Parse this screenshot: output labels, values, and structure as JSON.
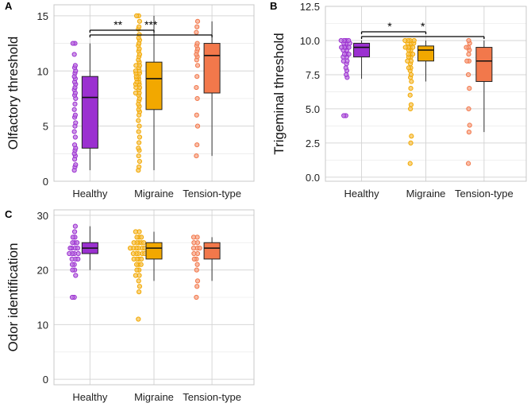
{
  "chart_data": [
    {
      "panel": "A",
      "type": "box-with-jitter",
      "ylabel": "Olfactory threshold",
      "ylim": [
        0,
        16
      ],
      "yticks": [
        0,
        5,
        10,
        15
      ],
      "categories": [
        "Healthy",
        "Migraine",
        "Tension-type"
      ],
      "colors": [
        "#9b30d0",
        "#f2a800",
        "#f2784b"
      ],
      "boxes": [
        {
          "q1": 3.0,
          "median": 7.6,
          "q3": 9.5,
          "whisker_low": 1.0,
          "whisker_high": 12.5
        },
        {
          "q1": 6.5,
          "median": 9.3,
          "q3": 10.8,
          "whisker_low": 1.0,
          "whisker_high": 15.0
        },
        {
          "q1": 8.0,
          "median": 11.4,
          "q3": 12.5,
          "whisker_low": 2.3,
          "whisker_high": 14.5
        }
      ],
      "points": [
        [
          1.0,
          1.3,
          1.5,
          2.0,
          2.3,
          2.5,
          2.8,
          3.0,
          3.3,
          4.0,
          4.5,
          5.0,
          5.3,
          5.8,
          6.0,
          6.5,
          7.0,
          7.5,
          7.8,
          8.0,
          8.3,
          8.5,
          8.8,
          9.0,
          9.3,
          9.5,
          9.8,
          10.0,
          10.3,
          10.5,
          11.5,
          12.5,
          12.5
        ],
        [
          1.0,
          1.3,
          1.8,
          2.3,
          2.8,
          3.0,
          3.5,
          4.0,
          4.5,
          5.0,
          5.5,
          6.0,
          6.3,
          6.5,
          6.8,
          7.0,
          7.3,
          7.5,
          7.8,
          8.0,
          8.0,
          8.3,
          8.5,
          8.5,
          8.8,
          8.8,
          9.0,
          9.0,
          9.3,
          9.3,
          9.5,
          9.5,
          9.8,
          9.8,
          10.0,
          10.0,
          10.3,
          10.5,
          10.5,
          10.8,
          11.0,
          11.3,
          11.5,
          11.8,
          12.0,
          12.3,
          12.5,
          12.8,
          13.0,
          13.3,
          13.8,
          14.0,
          14.5,
          15.0,
          15.0
        ],
        [
          2.3,
          3.3,
          5.0,
          6.0,
          7.5,
          8.5,
          9.5,
          10.5,
          11.0,
          11.3,
          11.5,
          11.8,
          12.0,
          12.3,
          12.5,
          13.5,
          14.0,
          14.5
        ]
      ],
      "significance": [
        {
          "from": "Healthy",
          "to": "Migraine",
          "label": "**"
        },
        {
          "from": "Healthy",
          "to": "Tension-type",
          "label": "***"
        }
      ]
    },
    {
      "panel": "B",
      "type": "box-with-jitter",
      "ylabel": "Trigeminal threshold",
      "ylim": [
        -0.3,
        12.5
      ],
      "yticks": [
        0.0,
        2.5,
        5.0,
        7.5,
        10.0,
        12.5
      ],
      "ytick_labels": [
        "0.0",
        "2.5",
        "5.0",
        "7.5",
        "10.0",
        "12.5"
      ],
      "categories": [
        "Healthy",
        "Migraine",
        "Tension-type"
      ],
      "colors": [
        "#9b30d0",
        "#f2a800",
        "#f2784b"
      ],
      "boxes": [
        {
          "q1": 8.8,
          "median": 9.5,
          "q3": 9.8,
          "whisker_low": 7.2,
          "whisker_high": 10.0
        },
        {
          "q1": 8.5,
          "median": 9.3,
          "q3": 9.6,
          "whisker_low": 7.0,
          "whisker_high": 10.0
        },
        {
          "q1": 7.0,
          "median": 8.5,
          "q3": 9.5,
          "whisker_low": 3.3,
          "whisker_high": 10.0
        }
      ],
      "points": [
        [
          4.5,
          4.5,
          7.3,
          7.5,
          7.8,
          8.0,
          8.3,
          8.5,
          8.5,
          8.8,
          8.8,
          9.0,
          9.0,
          9.0,
          9.3,
          9.3,
          9.5,
          9.5,
          9.5,
          9.5,
          9.8,
          9.8,
          9.8,
          10.0,
          10.0,
          10.0,
          10.0
        ],
        [
          1.0,
          2.5,
          3.0,
          5.0,
          5.3,
          6.0,
          6.5,
          7.0,
          7.3,
          7.5,
          7.8,
          8.0,
          8.0,
          8.3,
          8.5,
          8.5,
          8.8,
          8.8,
          9.0,
          9.0,
          9.0,
          9.3,
          9.3,
          9.5,
          9.5,
          9.5,
          9.5,
          9.8,
          9.8,
          9.8,
          10.0,
          10.0,
          10.0,
          10.0
        ],
        [
          1.0,
          3.3,
          3.8,
          5.0,
          6.5,
          7.5,
          8.5,
          8.5,
          9.0,
          9.3,
          9.5,
          9.5,
          9.8,
          10.0
        ]
      ],
      "significance": [
        {
          "from": "Healthy",
          "to": "Migraine",
          "label": "*"
        },
        {
          "from": "Healthy",
          "to": "Tension-type",
          "label": "*"
        }
      ]
    },
    {
      "panel": "C",
      "type": "box-with-jitter",
      "ylabel": "Odor identification",
      "ylim": [
        -1,
        31
      ],
      "yticks": [
        0,
        10,
        20,
        30
      ],
      "categories": [
        "Healthy",
        "Migraine",
        "Tension-type"
      ],
      "colors": [
        "#9b30d0",
        "#f2a800",
        "#f2784b"
      ],
      "boxes": [
        {
          "q1": 23,
          "median": 24,
          "q3": 25,
          "whisker_low": 20,
          "whisker_high": 28
        },
        {
          "q1": 22,
          "median": 24,
          "q3": 25,
          "whisker_low": 18,
          "whisker_high": 27
        },
        {
          "q1": 22,
          "median": 24,
          "q3": 25,
          "whisker_low": 18,
          "whisker_high": 26
        }
      ],
      "points": [
        [
          15,
          15,
          19,
          20,
          20,
          21,
          21,
          22,
          22,
          22,
          23,
          23,
          23,
          23,
          24,
          24,
          24,
          24,
          25,
          25,
          25,
          26,
          26,
          27,
          28
        ],
        [
          11,
          16,
          17,
          18,
          19,
          19,
          20,
          20,
          21,
          21,
          21,
          22,
          22,
          22,
          22,
          23,
          23,
          23,
          23,
          23,
          24,
          24,
          24,
          24,
          24,
          24,
          25,
          25,
          25,
          25,
          25,
          26,
          26,
          26,
          27,
          27
        ],
        [
          15,
          17,
          18,
          20,
          21,
          22,
          22,
          23,
          23,
          24,
          24,
          24,
          25,
          25,
          26,
          26
        ]
      ],
      "significance": []
    }
  ]
}
